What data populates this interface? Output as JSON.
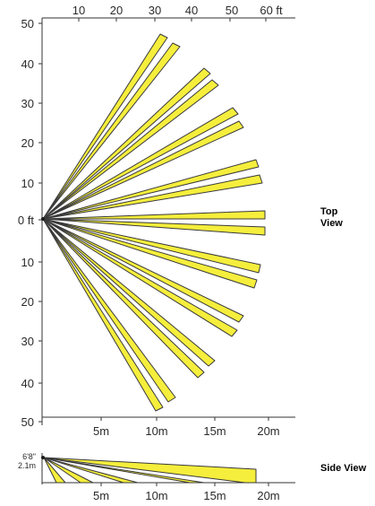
{
  "colors": {
    "beam_fill": "#f5ee3c",
    "beam_stroke": "#3a3a3a",
    "axis": "#333333",
    "text": "#2b2b2b",
    "origin_marker": "#1a1a1a"
  },
  "top_view": {
    "label_line1": "Top",
    "label_line2": "View",
    "top_ticks": [
      "10",
      "20",
      "30",
      "40",
      "50",
      "60 ft"
    ],
    "left_ticks": [
      "50",
      "40",
      "30",
      "20",
      "10",
      "0 ft",
      "10",
      "20",
      "30",
      "40",
      "50"
    ],
    "bottom_ticks": [
      "5m",
      "10m",
      "15m",
      "20m"
    ],
    "beam_count": 20
  },
  "side_view": {
    "label": "Side View",
    "height_ft": "6'8\"",
    "height_m": "2.1m",
    "bottom_ticks": [
      "5m",
      "10m",
      "15m",
      "20m"
    ]
  }
}
